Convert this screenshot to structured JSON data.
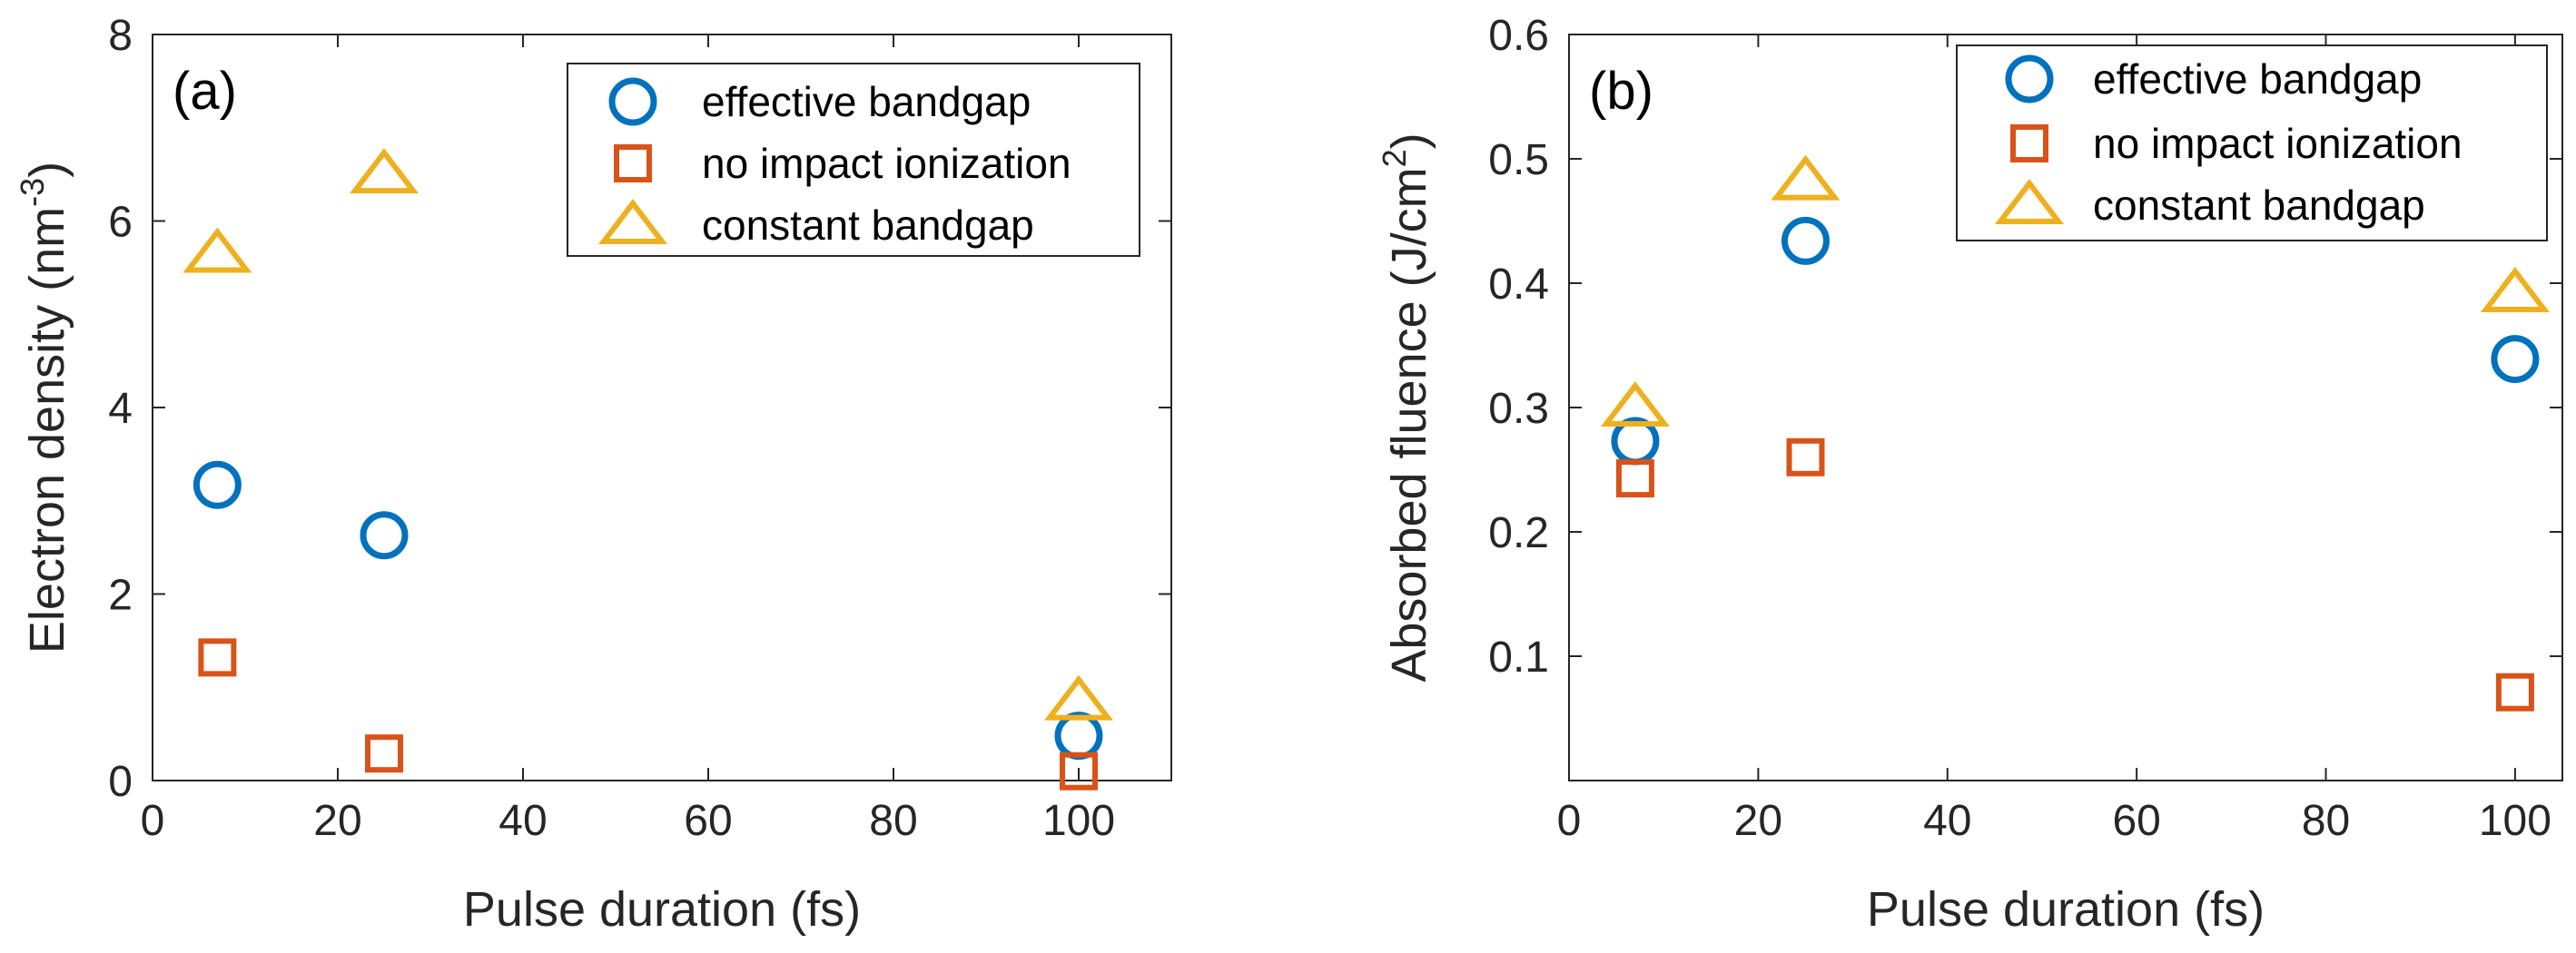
{
  "chart_data": [
    {
      "type": "scatter",
      "panel_label": "(a)",
      "xlabel": "Pulse duration (fs)",
      "ylabel": {
        "main": "Electron density (nm",
        "sup": "-3",
        "end": ")"
      },
      "xlim": [
        0,
        110
      ],
      "ylim": [
        0,
        8
      ],
      "xticks": [
        "0",
        "20",
        "40",
        "60",
        "80",
        "100"
      ],
      "yticks": [
        "0",
        "2",
        "4",
        "6",
        "8"
      ],
      "legend_position": "top-right",
      "series": [
        {
          "name": "effective bandgap",
          "marker": "circle",
          "color": "#0072BD",
          "points": [
            {
              "x": 7,
              "y": 3.17
            },
            {
              "x": 25,
              "y": 2.63
            },
            {
              "x": 100,
              "y": 0.48
            }
          ]
        },
        {
          "name": "no impact ionization",
          "marker": "square",
          "color": "#D95319",
          "points": [
            {
              "x": 7,
              "y": 1.32
            },
            {
              "x": 25,
              "y": 0.29
            },
            {
              "x": 100,
              "y": 0.1
            }
          ]
        },
        {
          "name": "constant bandgap",
          "marker": "triangle",
          "color": "#EDB120",
          "points": [
            {
              "x": 7,
              "y": 5.65
            },
            {
              "x": 25,
              "y": 6.5
            },
            {
              "x": 100,
              "y": 0.85
            }
          ]
        }
      ]
    },
    {
      "type": "scatter",
      "panel_label": "(b)",
      "xlabel": "Pulse duration (fs)",
      "ylabel": {
        "main": "Absorbed fluence (J/cm",
        "sup": "2",
        "end": ")"
      },
      "xlim": [
        0,
        105
      ],
      "ylim": [
        0,
        0.6
      ],
      "xticks": [
        "0",
        "20",
        "40",
        "60",
        "80",
        "100"
      ],
      "yticks": [
        "0.1",
        "0.2",
        "0.3",
        "0.4",
        "0.5",
        "0.6"
      ],
      "legend_position": "top-right",
      "series": [
        {
          "name": "effective bandgap",
          "marker": "circle",
          "color": "#0072BD",
          "points": [
            {
              "x": 7,
              "y": 0.273
            },
            {
              "x": 25,
              "y": 0.434
            },
            {
              "x": 100,
              "y": 0.339
            }
          ]
        },
        {
          "name": "no impact ionization",
          "marker": "square",
          "color": "#D95319",
          "points": [
            {
              "x": 7,
              "y": 0.243
            },
            {
              "x": 25,
              "y": 0.26
            },
            {
              "x": 100,
              "y": 0.071
            }
          ]
        },
        {
          "name": "constant bandgap",
          "marker": "triangle",
          "color": "#EDB120",
          "points": [
            {
              "x": 7,
              "y": 0.3
            },
            {
              "x": 25,
              "y": 0.482
            },
            {
              "x": 100,
              "y": 0.392
            }
          ]
        }
      ]
    }
  ]
}
